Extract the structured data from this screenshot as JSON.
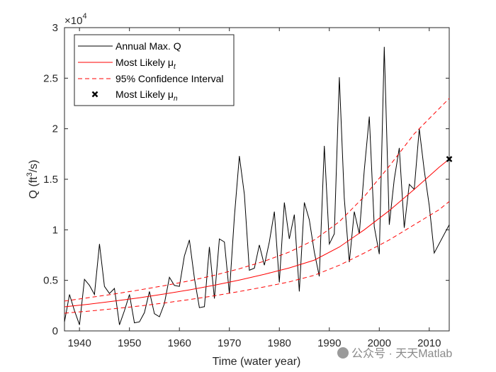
{
  "chart_data": {
    "type": "line",
    "xlabel": "Time (water year)",
    "ylabel_base": "Q (ft",
    "ylabel_sup": "3",
    "ylabel_end": "/s)",
    "exponent_label": "×10",
    "exponent_power": "4",
    "xlim": [
      1937,
      2014
    ],
    "ylim": [
      0,
      30000
    ],
    "x_ticks": [
      1940,
      1950,
      1960,
      1970,
      1980,
      1990,
      2000,
      2010
    ],
    "y_ticks": [
      0,
      5000,
      10000,
      15000,
      20000,
      25000,
      30000
    ],
    "y_tick_labels": [
      "0",
      "0.5",
      "1",
      "1.5",
      "2",
      "2.5",
      "3"
    ],
    "grid": false,
    "legend_position": "top-left",
    "series": [
      {
        "name": "Annual Max. Q",
        "color": "#000000",
        "style": "solid",
        "x": [
          1937,
          1938,
          1939,
          1940,
          1941,
          1942,
          1943,
          1944,
          1945,
          1946,
          1947,
          1948,
          1949,
          1950,
          1951,
          1952,
          1953,
          1954,
          1955,
          1956,
          1957,
          1958,
          1959,
          1960,
          1961,
          1962,
          1963,
          1964,
          1965,
          1966,
          1967,
          1968,
          1969,
          1970,
          1971,
          1972,
          1973,
          1974,
          1975,
          1976,
          1977,
          1978,
          1979,
          1980,
          1981,
          1982,
          1983,
          1984,
          1985,
          1986,
          1987,
          1988,
          1989,
          1990,
          1991,
          1992,
          1993,
          1994,
          1995,
          1996,
          1997,
          1998,
          1999,
          2000,
          2001,
          2002,
          2003,
          2004,
          2005,
          2006,
          2007,
          2008,
          2009,
          2010,
          2011,
          2014
        ],
        "y": [
          900,
          3600,
          2000,
          600,
          5100,
          4500,
          3600,
          8600,
          4400,
          3700,
          4200,
          600,
          2000,
          3600,
          800,
          900,
          1800,
          3900,
          1700,
          1400,
          2700,
          5300,
          4500,
          4400,
          7400,
          9000,
          5200,
          2300,
          2400,
          8300,
          3200,
          9100,
          8800,
          3700,
          11300,
          17300,
          13500,
          6000,
          6200,
          8500,
          6500,
          8800,
          11800,
          4800,
          12700,
          9100,
          11500,
          3900,
          12700,
          11000,
          7800,
          5400,
          18300,
          8600,
          9600,
          25100,
          13100,
          6800,
          11800,
          9600,
          15900,
          21200,
          10300,
          7600,
          28100,
          10500,
          15000,
          18100,
          10200,
          14500,
          14000,
          20000,
          15900,
          12400,
          7700,
          10500
        ]
      },
      {
        "name": "Most Likely μt",
        "color": "#ff0000",
        "style": "solid",
        "x": [
          1937,
          1942,
          1947,
          1952,
          1957,
          1962,
          1967,
          1972,
          1977,
          1982,
          1987,
          1992,
          1997,
          2002,
          2007,
          2012,
          2014
        ],
        "y": [
          2380,
          2650,
          2950,
          3280,
          3650,
          4060,
          4520,
          5030,
          5600,
          6230,
          7000,
          8300,
          10000,
          11900,
          14000,
          16200,
          17000
        ]
      },
      {
        "name": "95% Confidence Interval",
        "color": "#ff0000",
        "style": "dashed",
        "x": [
          1937,
          1942,
          1947,
          1952,
          1957,
          1962,
          1967,
          1972,
          1977,
          1982,
          1987,
          1992,
          1997,
          2002,
          2007,
          2012,
          2014
        ],
        "y": [
          2950,
          3300,
          3650,
          4050,
          4480,
          4950,
          5500,
          6150,
          6900,
          7800,
          9000,
          10800,
          13300,
          16300,
          19500,
          22000,
          23000
        ]
      },
      {
        "name": "",
        "color": "#ff0000",
        "style": "dashed",
        "x": [
          1937,
          1942,
          1947,
          1952,
          1957,
          1962,
          1967,
          1972,
          1977,
          1982,
          1987,
          1992,
          1997,
          2002,
          2007,
          2012,
          2014
        ],
        "y": [
          1750,
          1960,
          2200,
          2460,
          2760,
          3100,
          3480,
          3900,
          4350,
          4850,
          5500,
          6500,
          7700,
          9000,
          10500,
          12000,
          12800
        ]
      }
    ],
    "marker": {
      "name": "Most Likely μn",
      "x": 2014,
      "y": 17000,
      "symbol": "x",
      "color": "#000000"
    },
    "legend": [
      {
        "label": "Annual Max. Q",
        "sub": ""
      },
      {
        "label": "Most Likely μ",
        "sub": "t"
      },
      {
        "label": "95% Confidence Interval",
        "sub": ""
      },
      {
        "label": "Most Likely μ",
        "sub": "n"
      }
    ]
  },
  "watermark": "公众号 · 天天Matlab"
}
